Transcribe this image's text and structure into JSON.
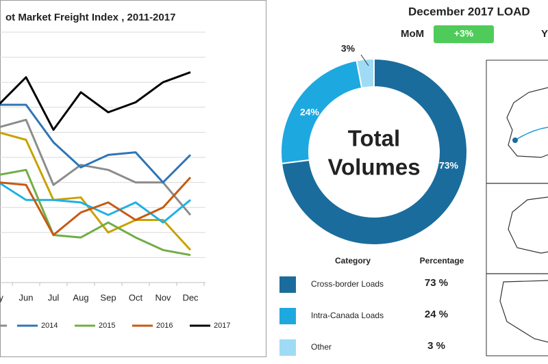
{
  "chart_data": [
    {
      "type": "line",
      "title": "ot Market Freight Index , 2011-2017",
      "categories": [
        "ay",
        "Jun",
        "Jul",
        "Aug",
        "Sep",
        "Oct",
        "Nov",
        "Dec"
      ],
      "ylim": [
        0,
        10
      ],
      "yticks": [
        0,
        1,
        2,
        3,
        4,
        5,
        6,
        7,
        8,
        9,
        10
      ],
      "grid": true,
      "series": [
        {
          "color": "#8c8c8c",
          "values": [
            6.2,
            6.5,
            3.9,
            4.7,
            4.5,
            4.0,
            4.0,
            2.7
          ]
        },
        {
          "color": "#c9a100",
          "values": [
            6.0,
            5.7,
            3.3,
            3.4,
            2.0,
            2.5,
            2.5,
            1.3
          ]
        },
        {
          "color": "#1fb0e6",
          "values": [
            4.0,
            3.3,
            3.3,
            3.2,
            2.7,
            3.2,
            2.4,
            3.3
          ]
        },
        {
          "name": "2014",
          "color": "#2e75b6",
          "values": [
            7.1,
            7.1,
            5.6,
            4.6,
            5.1,
            5.2,
            4.0,
            5.1
          ]
        },
        {
          "name": "2015",
          "color": "#70ad47",
          "values": [
            4.3,
            4.5,
            1.9,
            1.8,
            2.4,
            1.8,
            1.3,
            1.1
          ]
        },
        {
          "name": "2016",
          "color": "#c55a11",
          "values": [
            4.0,
            3.9,
            1.9,
            2.8,
            3.2,
            2.5,
            3.0,
            4.2
          ]
        },
        {
          "name": "2017",
          "color": "#000000",
          "values": [
            7.1,
            8.2,
            6.1,
            7.6,
            6.8,
            7.2,
            8.0,
            8.4
          ]
        }
      ]
    },
    {
      "type": "donut",
      "center_text": [
        "Total",
        "Volumes"
      ],
      "categories": [
        "Cross-border Loads",
        "Intra-Canada Loads",
        "Other"
      ],
      "values": [
        73,
        24,
        3
      ],
      "value_labels": [
        "73%",
        "24%",
        "3%"
      ],
      "colors": [
        "#1a6c9c",
        "#1ea8e0",
        "#9fdbf4"
      ]
    }
  ],
  "header": {
    "title": "December 2017 LOAD",
    "mom_label": "MoM",
    "mom_value": "+3%",
    "yoy_label": "Y"
  },
  "table": {
    "headers": [
      "Category",
      "Percentage"
    ],
    "percent_labels": [
      "73 %",
      "24 %",
      "3 %"
    ]
  }
}
